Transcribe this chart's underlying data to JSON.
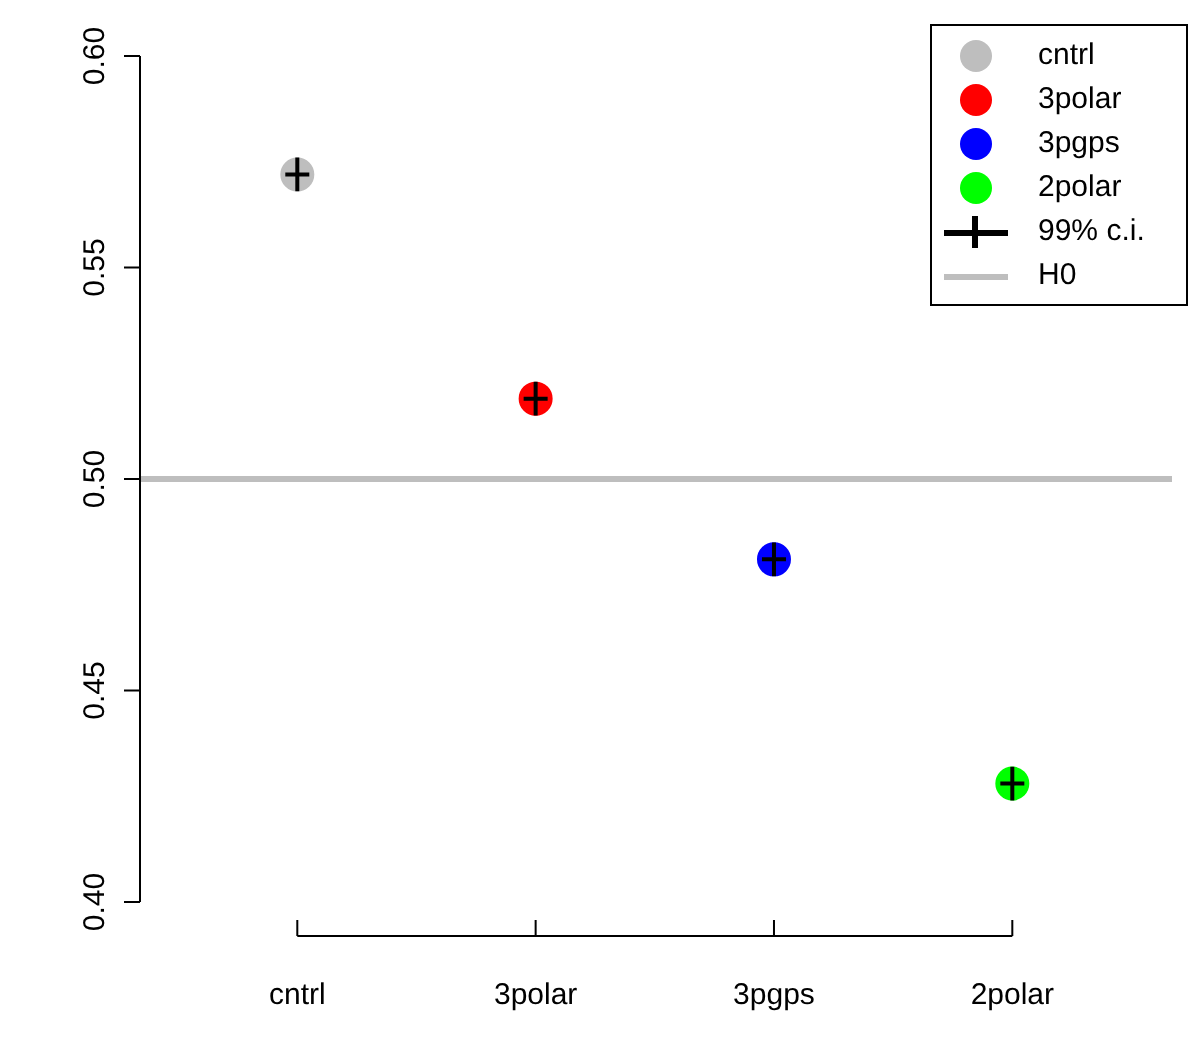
{
  "chart_data": {
    "type": "scatter",
    "categories": [
      "cntrl",
      "3polar",
      "3pgps",
      "2polar"
    ],
    "series": [
      {
        "name": "cntrl",
        "color": "#bebebe",
        "values": [
          0.572,
          null,
          null,
          null
        ],
        "errors": [
          0.004,
          null,
          null,
          null
        ]
      },
      {
        "name": "3polar",
        "color": "#ff0000",
        "values": [
          null,
          0.519,
          null,
          null
        ],
        "errors": [
          null,
          0.004,
          null,
          null
        ]
      },
      {
        "name": "3pgps",
        "color": "#0000ff",
        "values": [
          null,
          null,
          0.481,
          null
        ],
        "errors": [
          null,
          null,
          0.004,
          null
        ]
      },
      {
        "name": "2polar",
        "color": "#00ff00",
        "values": [
          null,
          null,
          null,
          0.428
        ],
        "errors": [
          null,
          null,
          null,
          0.004
        ]
      }
    ],
    "ylim": [
      0.4,
      0.6
    ],
    "yticks": [
      {
        "value": 0.4,
        "label": "0.40"
      },
      {
        "value": 0.45,
        "label": "0.45"
      },
      {
        "value": 0.5,
        "label": "0.50"
      },
      {
        "value": 0.55,
        "label": "0.55"
      },
      {
        "value": 0.6,
        "label": "0.60"
      }
    ],
    "ref_lines": [
      {
        "axis": "y",
        "value": 0.5,
        "label": "H0",
        "color": "#bebebe"
      }
    ],
    "annotations": [
      "99% c.i."
    ],
    "legend": "top right",
    "marker": "circle",
    "grid": false
  }
}
